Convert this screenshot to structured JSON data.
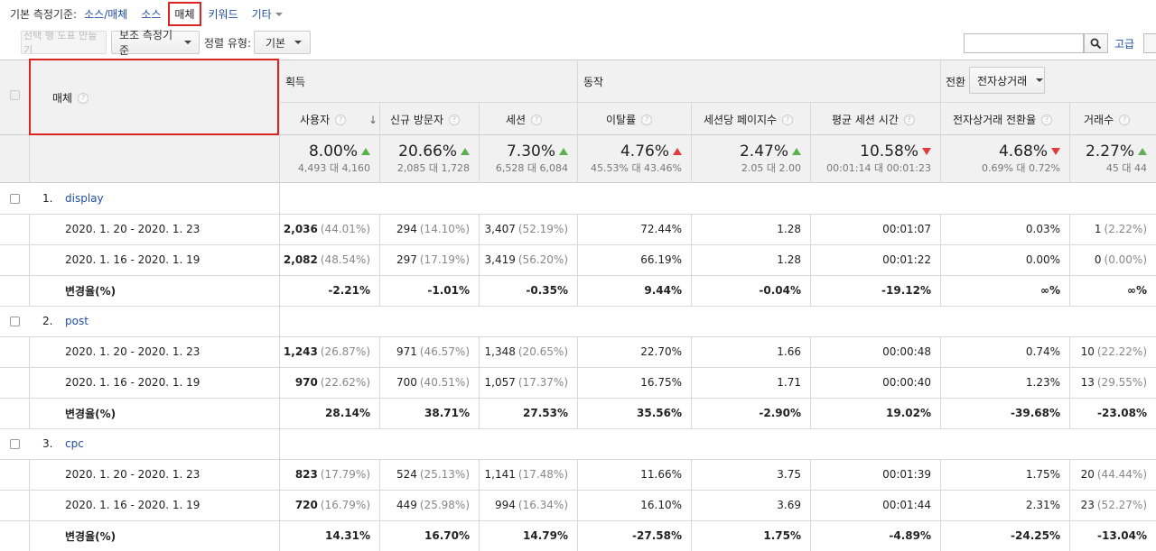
{
  "dimension_bar": {
    "label": "기본 측정기준:",
    "options": [
      "소스/매체",
      "소스",
      "매체",
      "키워드",
      "기타"
    ],
    "selected_index": 2
  },
  "toolbar": {
    "chart_rows_label": "선택 행 도표 만들기",
    "secondary_dimension_label": "보조 측정기준",
    "sort_type_label": "정렬 유형:",
    "sort_type_value": "기본",
    "search_placeholder": "",
    "advanced_label": "고급"
  },
  "header": {
    "dimension_label": "매체",
    "groups": {
      "acquisition": "획득",
      "behavior": "동작",
      "conversions": "전환",
      "conversion_select": "전자상거래"
    },
    "columns": [
      "사용자",
      "신규 방문자",
      "세션",
      "이탈률",
      "세션당 페이지수",
      "평균 세션 시간",
      "전자상거래 전환율",
      "거래수"
    ]
  },
  "totals": [
    {
      "value": "8.00%",
      "trend": "up",
      "sub": "4,493 대 4,160"
    },
    {
      "value": "20.66%",
      "trend": "up",
      "sub": "2,085 대 1,728"
    },
    {
      "value": "7.30%",
      "trend": "up",
      "sub": "6,528 대 6,084"
    },
    {
      "value": "4.76%",
      "trend": "up-red",
      "sub": "45.53% 대 43.46%"
    },
    {
      "value": "2.47%",
      "trend": "up",
      "sub": "2.05 대 2.00"
    },
    {
      "value": "10.58%",
      "trend": "down",
      "sub": "00:01:14 대 00:01:23"
    },
    {
      "value": "4.68%",
      "trend": "down",
      "sub": "0.69% 대 0.72%"
    },
    {
      "value": "2.27%",
      "trend": "up",
      "sub": "45 대 44"
    }
  ],
  "groups": [
    {
      "index": "1.",
      "name": "display",
      "rows": [
        {
          "label": "2020. 1. 20 - 2020. 1. 23",
          "cells": [
            [
              "2,036",
              "(44.01%)"
            ],
            [
              "294",
              "(14.10%)"
            ],
            [
              "3,407",
              "(52.19%)"
            ],
            [
              "72.44%",
              ""
            ],
            [
              "1.28",
              ""
            ],
            [
              "00:01:07",
              ""
            ],
            [
              "0.03%",
              ""
            ],
            [
              "1",
              "(2.22%)"
            ]
          ]
        },
        {
          "label": "2020. 1. 16 - 2020. 1. 19",
          "cells": [
            [
              "2,082",
              "(48.54%)"
            ],
            [
              "297",
              "(17.19%)"
            ],
            [
              "3,419",
              "(56.20%)"
            ],
            [
              "66.19%",
              ""
            ],
            [
              "1.28",
              ""
            ],
            [
              "00:01:22",
              ""
            ],
            [
              "0.00%",
              ""
            ],
            [
              "0",
              "(0.00%)"
            ]
          ]
        },
        {
          "label": "변경율(%)",
          "cells": [
            [
              "-2.21%",
              ""
            ],
            [
              "-1.01%",
              ""
            ],
            [
              "-0.35%",
              ""
            ],
            [
              "9.44%",
              ""
            ],
            [
              "-0.04%",
              ""
            ],
            [
              "-19.12%",
              ""
            ],
            [
              "∞%",
              ""
            ],
            [
              "∞%",
              ""
            ]
          ]
        }
      ]
    },
    {
      "index": "2.",
      "name": "post",
      "rows": [
        {
          "label": "2020. 1. 20 - 2020. 1. 23",
          "cells": [
            [
              "1,243",
              "(26.87%)"
            ],
            [
              "971",
              "(46.57%)"
            ],
            [
              "1,348",
              "(20.65%)"
            ],
            [
              "22.70%",
              ""
            ],
            [
              "1.66",
              ""
            ],
            [
              "00:00:48",
              ""
            ],
            [
              "0.74%",
              ""
            ],
            [
              "10",
              "(22.22%)"
            ]
          ]
        },
        {
          "label": "2020. 1. 16 - 2020. 1. 19",
          "cells": [
            [
              "970",
              "(22.62%)"
            ],
            [
              "700",
              "(40.51%)"
            ],
            [
              "1,057",
              "(17.37%)"
            ],
            [
              "16.75%",
              ""
            ],
            [
              "1.71",
              ""
            ],
            [
              "00:00:40",
              ""
            ],
            [
              "1.23%",
              ""
            ],
            [
              "13",
              "(29.55%)"
            ]
          ]
        },
        {
          "label": "변경율(%)",
          "cells": [
            [
              "28.14%",
              ""
            ],
            [
              "38.71%",
              ""
            ],
            [
              "27.53%",
              ""
            ],
            [
              "35.56%",
              ""
            ],
            [
              "-2.90%",
              ""
            ],
            [
              "19.02%",
              ""
            ],
            [
              "-39.68%",
              ""
            ],
            [
              "-23.08%",
              ""
            ]
          ]
        }
      ]
    },
    {
      "index": "3.",
      "name": "cpc",
      "rows": [
        {
          "label": "2020. 1. 20 - 2020. 1. 23",
          "cells": [
            [
              "823",
              "(17.79%)"
            ],
            [
              "524",
              "(25.13%)"
            ],
            [
              "1,141",
              "(17.48%)"
            ],
            [
              "11.66%",
              ""
            ],
            [
              "3.75",
              ""
            ],
            [
              "00:01:39",
              ""
            ],
            [
              "1.75%",
              ""
            ],
            [
              "20",
              "(44.44%)"
            ]
          ]
        },
        {
          "label": "2020. 1. 16 - 2020. 1. 19",
          "cells": [
            [
              "720",
              "(16.79%)"
            ],
            [
              "449",
              "(25.98%)"
            ],
            [
              "994",
              "(16.34%)"
            ],
            [
              "16.10%",
              ""
            ],
            [
              "3.69",
              ""
            ],
            [
              "00:01:44",
              ""
            ],
            [
              "2.31%",
              ""
            ],
            [
              "23",
              "(52.27%)"
            ]
          ]
        },
        {
          "label": "변경율(%)",
          "cells": [
            [
              "14.31%",
              ""
            ],
            [
              "16.70%",
              ""
            ],
            [
              "14.79%",
              ""
            ],
            [
              "-27.58%",
              ""
            ],
            [
              "1.75%",
              ""
            ],
            [
              "-4.89%",
              ""
            ],
            [
              "-24.25%",
              ""
            ],
            [
              "-13.04%",
              ""
            ]
          ]
        }
      ]
    }
  ],
  "colors": {
    "link": "#1f4fa8",
    "highlight": "#dd2222",
    "up": "#5bb14b",
    "down": "#e23b3b"
  }
}
